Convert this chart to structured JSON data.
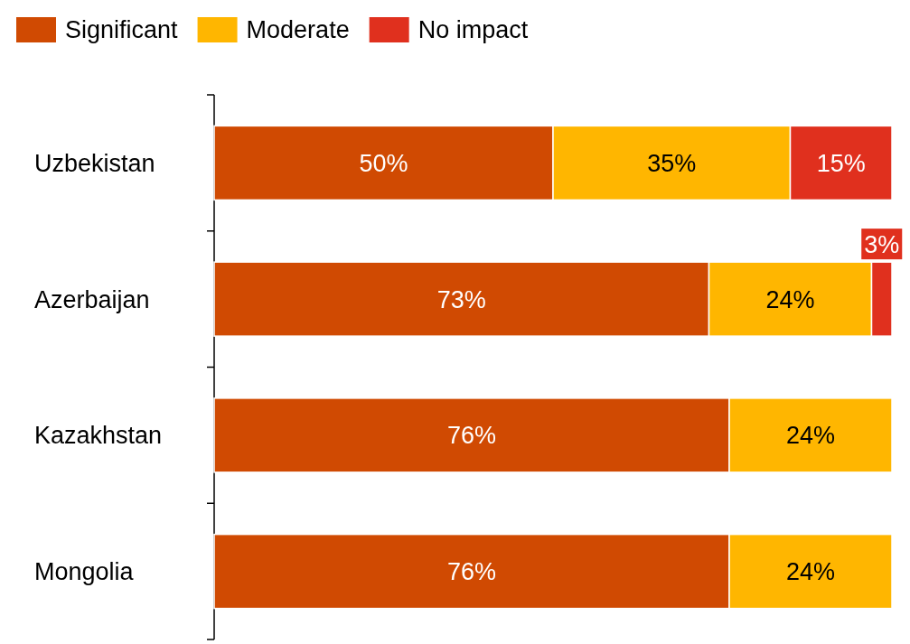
{
  "chart_data": {
    "type": "bar",
    "orientation": "horizontal",
    "stacked": true,
    "categories": [
      "Uzbekistan",
      "Azerbaijan",
      "Kazakhstan",
      "Mongolia"
    ],
    "series": [
      {
        "name": "Significant",
        "color": "#d04a02",
        "values": [
          50,
          73,
          76,
          76
        ],
        "value_labels": [
          "50%",
          "73%",
          "76%",
          "76%"
        ]
      },
      {
        "name": "Moderate",
        "color": "#ffb600",
        "values": [
          35,
          24,
          24,
          24
        ],
        "value_labels": [
          "35%",
          "24%",
          "24%",
          "24%"
        ]
      },
      {
        "name": "No impact",
        "color": "#e0301e",
        "values": [
          15,
          3,
          null,
          null
        ],
        "value_labels": [
          "15%",
          "3%",
          null,
          null
        ]
      }
    ],
    "legend": "top left",
    "tick_labels": "y"
  }
}
